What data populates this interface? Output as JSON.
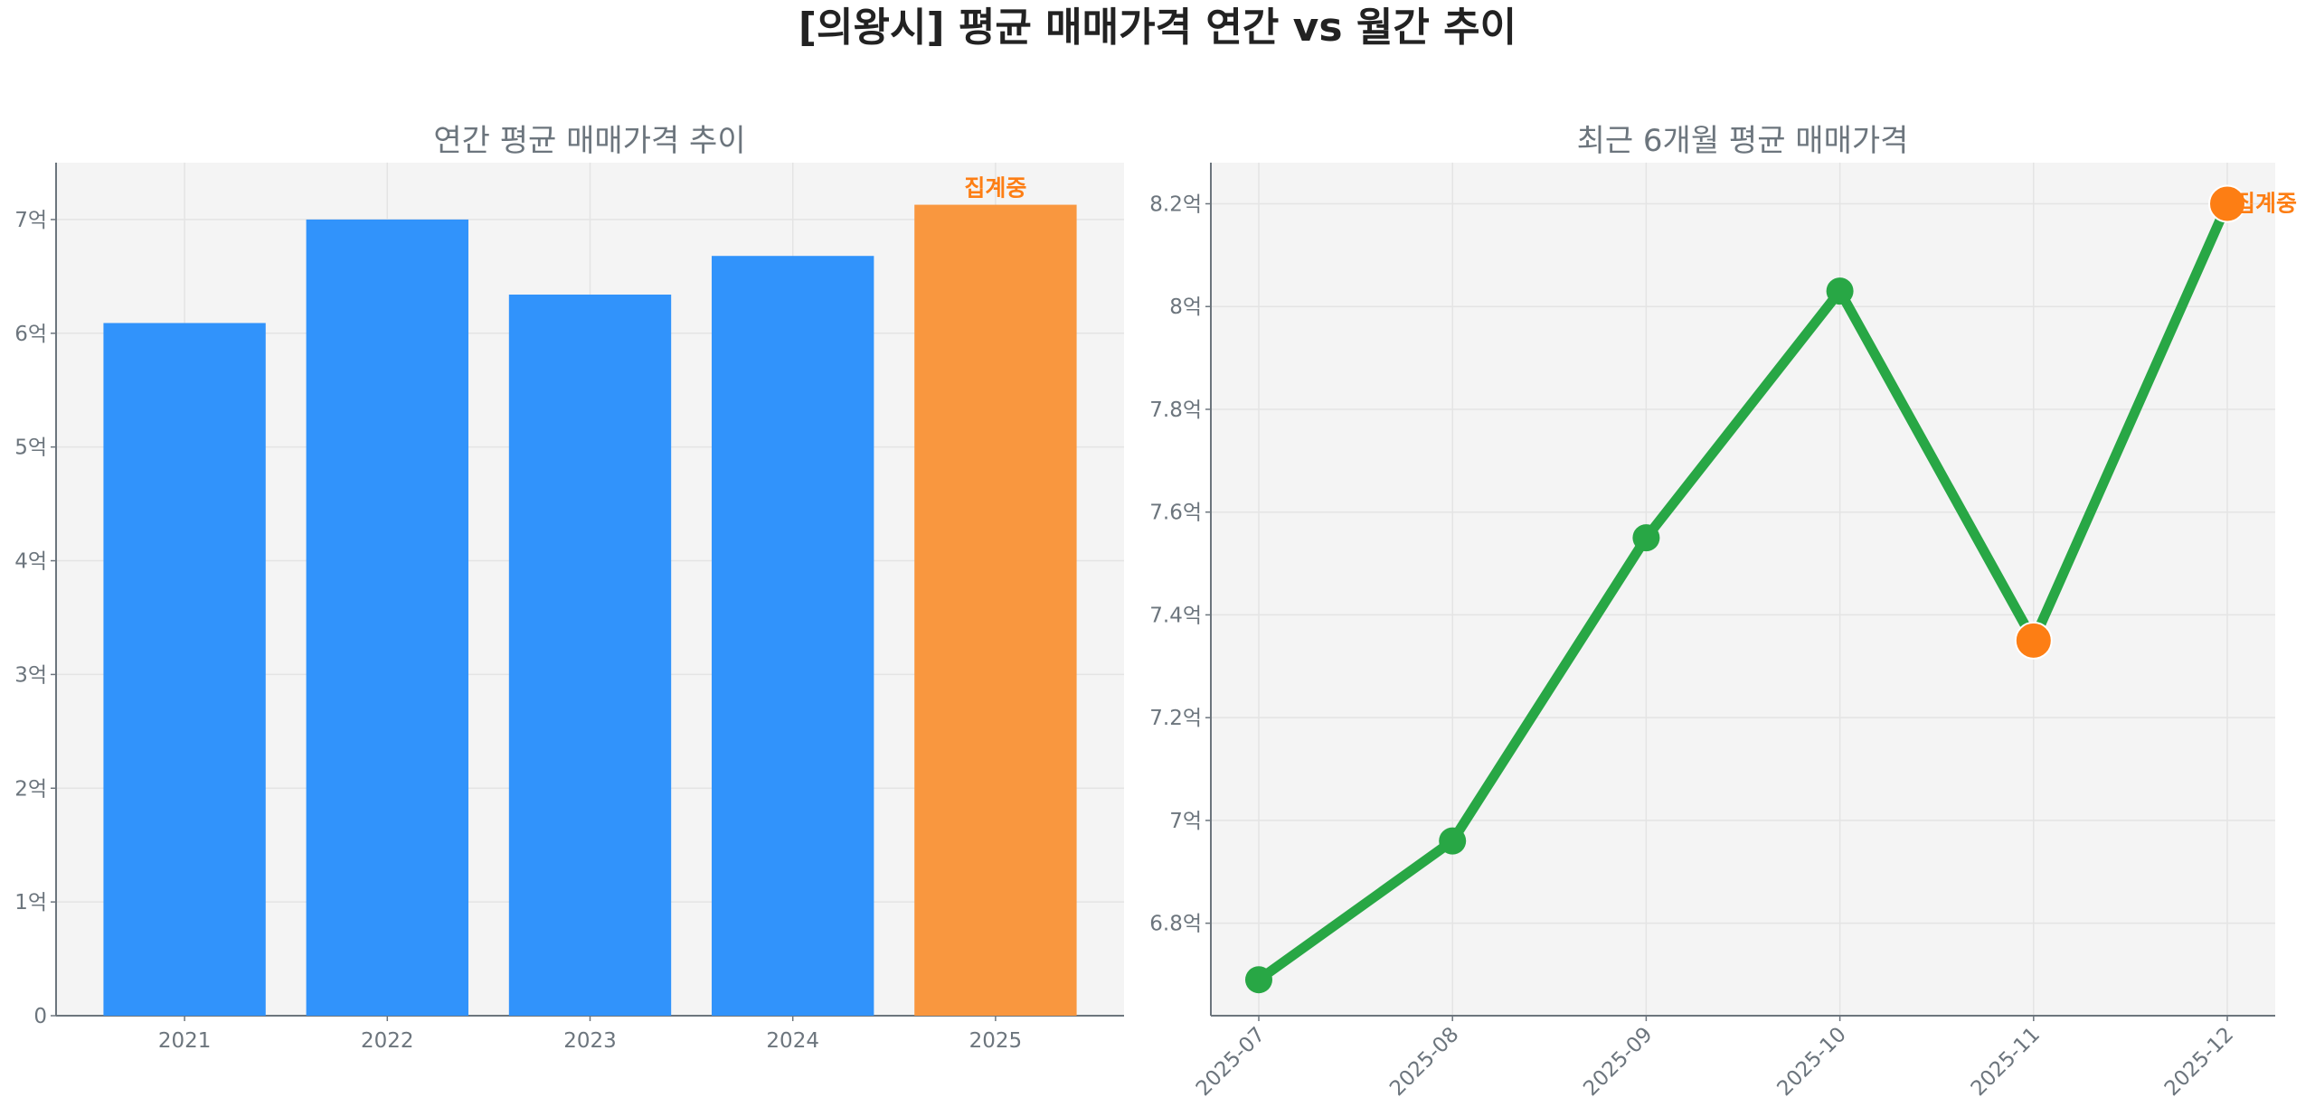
{
  "title": "[의왕시] 평균 매매가격 연간 vs 월간 추이",
  "colors": {
    "bar": "#3193fb",
    "bar_highlight": "#f9973f",
    "line": "#28a745",
    "marker_highlight": "#fd7e14",
    "annotation": "#fd7e14",
    "plot_bg": "#f4f4f4"
  },
  "chart_data": [
    {
      "type": "bar",
      "title": "연간 평균 매매가격 추이",
      "categories": [
        "2021",
        "2022",
        "2023",
        "2024",
        "2025"
      ],
      "values": [
        6.09,
        7.0,
        6.34,
        6.68,
        7.13
      ],
      "unit": "억",
      "highlight": [
        false,
        false,
        false,
        false,
        true
      ],
      "annotation": {
        "category": "2025",
        "text": "집계중"
      },
      "ylim": [
        0,
        7.5
      ],
      "yticks": [
        0,
        1,
        2,
        3,
        4,
        5,
        6,
        7
      ],
      "ytick_labels": [
        "0",
        "1억",
        "2억",
        "3억",
        "4억",
        "5억",
        "6억",
        "7억"
      ],
      "grid": true
    },
    {
      "type": "line",
      "title": "최근 6개월 평균 매매가격",
      "x": [
        "2025-07",
        "2025-08",
        "2025-09",
        "2025-10",
        "2025-11",
        "2025-12"
      ],
      "values": [
        6.69,
        6.96,
        7.55,
        8.03,
        7.35,
        8.2
      ],
      "unit": "억",
      "highlight": [
        false,
        false,
        false,
        false,
        true,
        true
      ],
      "annotation": {
        "x": "2025-12",
        "text": "집계중"
      },
      "ylim": [
        6.62,
        8.28
      ],
      "yticks": [
        6.8,
        7.0,
        7.2,
        7.4,
        7.6,
        7.8,
        8.0,
        8.2
      ],
      "ytick_labels": [
        "6.8억",
        "7억",
        "7.2억",
        "7.4억",
        "7.6억",
        "7.8억",
        "8억",
        "8.2억"
      ],
      "xtick_rotation": 45,
      "grid": true
    }
  ]
}
